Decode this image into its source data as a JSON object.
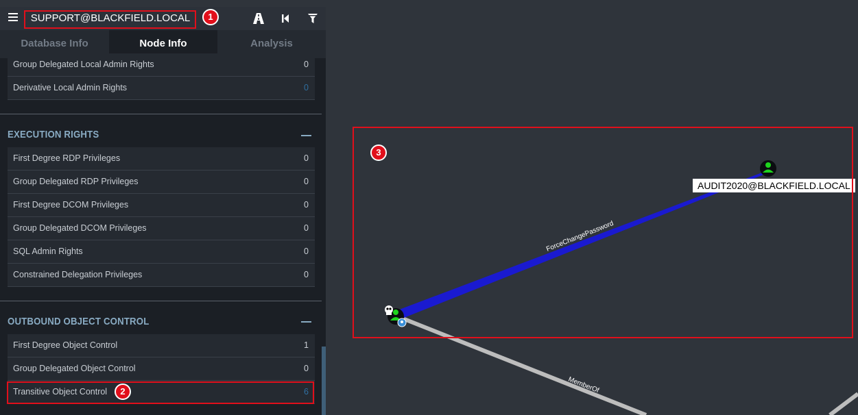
{
  "header": {
    "selected_node": "SUPPORT@BLACKFIELD.LOCAL",
    "buttons": [
      "pathfinding-icon",
      "back-icon",
      "filter-icon"
    ]
  },
  "tabs": [
    {
      "label": "Database Info",
      "active": false
    },
    {
      "label": "Node Info",
      "active": true
    },
    {
      "label": "Analysis",
      "active": false
    }
  ],
  "local_admin_rows": [
    {
      "label": "Group Delegated Local Admin Rights",
      "value": "0"
    },
    {
      "label": "Derivative Local Admin Rights",
      "value": "0"
    }
  ],
  "execution_rights": {
    "title": "EXECUTION RIGHTS",
    "rows": [
      {
        "label": "First Degree RDP Privileges",
        "value": "0"
      },
      {
        "label": "Group Delegated RDP Privileges",
        "value": "0"
      },
      {
        "label": "First Degree DCOM Privileges",
        "value": "0"
      },
      {
        "label": "Group Delegated DCOM Privileges",
        "value": "0"
      },
      {
        "label": "SQL Admin Rights",
        "value": "0"
      },
      {
        "label": "Constrained Delegation Privileges",
        "value": "0"
      }
    ]
  },
  "outbound_control": {
    "title": "OUTBOUND OBJECT CONTROL",
    "rows": [
      {
        "label": "First Degree Object Control",
        "value": "1"
      },
      {
        "label": "Group Delegated Object Control",
        "value": "0"
      },
      {
        "label": "Transitive Object Control",
        "value": "6"
      }
    ]
  },
  "graph": {
    "target_node_label": "AUDIT2020@BLACKFIELD.LOCAL",
    "edge_force_change_password": "ForceChangePassword",
    "edge_member_of": "MemberOf"
  },
  "annotations": {
    "badge_1": "1",
    "badge_2": "2",
    "badge_3": "3"
  },
  "colors": {
    "highlight": "#e10f1b",
    "edge_force_change_password": "#1a1ad0",
    "edge_member_of": "#c0c0c0",
    "user_node": "#1ed41e",
    "link_value": "#2f6e9f"
  }
}
